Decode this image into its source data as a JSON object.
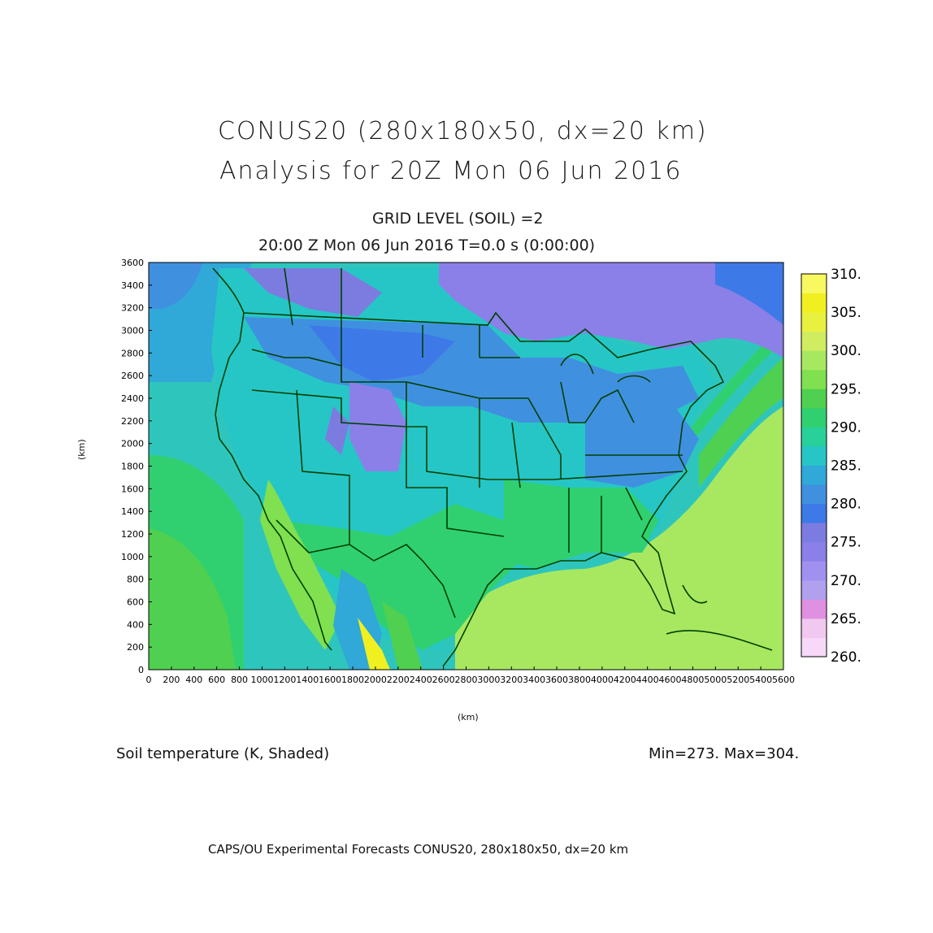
{
  "header": {
    "title_line1": "CONUS20 (280x180x50, dx=20 km)",
    "title_line2": "Analysis for 20Z Mon 06 Jun 2016",
    "subtitle_line1": "GRID LEVEL (SOIL) =2",
    "subtitle_line2": "20:00 Z Mon 06 Jun 2016    T=0.0 s (0:00:00)"
  },
  "axes": {
    "x_label": "(km)",
    "y_label": "(km)",
    "x_ticks": [
      "0",
      "200",
      "400",
      "600",
      "800",
      "1000",
      "1200",
      "1400",
      "1600",
      "1800",
      "2000",
      "2200",
      "2400",
      "2600",
      "2800",
      "3000",
      "3200",
      "3400",
      "3600",
      "3800",
      "4000",
      "4200",
      "4400",
      "4600",
      "4800",
      "5000",
      "5200",
      "5400",
      "5600"
    ],
    "y_ticks": [
      "0",
      "200",
      "400",
      "600",
      "800",
      "1000",
      "1200",
      "1400",
      "1600",
      "1800",
      "2000",
      "2200",
      "2400",
      "2600",
      "2800",
      "3000",
      "3200",
      "3400",
      "3600"
    ],
    "x_range": [
      0,
      5600
    ],
    "y_range": [
      0,
      3600
    ]
  },
  "colorbar": {
    "labels": [
      "260.",
      "265.",
      "270.",
      "275.",
      "280.",
      "285.",
      "290.",
      "295.",
      "300.",
      "305.",
      "310."
    ],
    "colors": [
      "#f8d8f8",
      "#f0c8f0",
      "#e090e0",
      "#b0a0ee",
      "#a090f0",
      "#8a80e8",
      "#7c7ce0",
      "#3d7ae8",
      "#4090e0",
      "#30a8d8",
      "#26c6c6",
      "#28d09a",
      "#30d070",
      "#50d050",
      "#80e050",
      "#a8e860",
      "#d0ec60",
      "#e8f040",
      "#f0f020",
      "#f8f860"
    ]
  },
  "footer": {
    "field_label": "Soil temperature (K, Shaded)",
    "minmax": "Min=273.  Max=304.",
    "credit": "CAPS/OU Experimental Forecasts   CONUS20, 280x180x50, dx=20 km"
  }
}
